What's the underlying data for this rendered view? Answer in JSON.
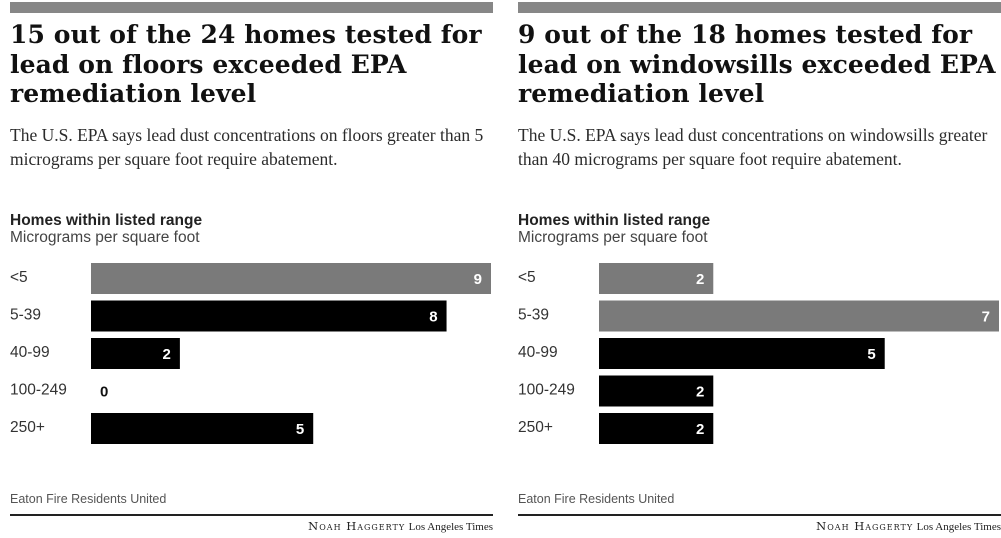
{
  "chart_data": [
    {
      "type": "bar",
      "title": "15 out of the 24 homes tested for lead on floors exceeded EPA remediation level",
      "subtitle": "The U.S. EPA says lead dust concentrations on floors greater than 5 micrograms per square foot require abatement.",
      "ylabel": "Homes within listed range",
      "xlabel": "Micrograms per square foot",
      "categories": [
        "<5",
        "5-39",
        "40-99",
        "100-249",
        "250+"
      ],
      "values": [
        9,
        8,
        2,
        0,
        5
      ],
      "highlight": [
        true,
        false,
        false,
        false,
        false
      ],
      "xlim": [
        0,
        9
      ],
      "grid": false,
      "colors": {
        "highlight": "#7a7a7a",
        "bar": "#000000",
        "label_outside": "#111111",
        "label_inside": "#ffffff"
      },
      "source": "Eaton Fire Residents United",
      "credit_name": "Noah Haggerty",
      "credit_org": "Los Angeles Times"
    },
    {
      "type": "bar",
      "title": "9 out of the 18 homes tested for lead on windowsills exceeded EPA remediation level",
      "subtitle": "The U.S. EPA says lead dust concentrations on windowsills greater than 40 micrograms per square foot require abatement.",
      "ylabel": "Homes within listed range",
      "xlabel": "Micrograms per square foot",
      "categories": [
        "<5",
        "5-39",
        "40-99",
        "100-249",
        "250+"
      ],
      "values": [
        2,
        7,
        5,
        2,
        2
      ],
      "highlight": [
        true,
        true,
        false,
        false,
        false
      ],
      "xlim": [
        0,
        7
      ],
      "grid": false,
      "colors": {
        "highlight": "#7a7a7a",
        "bar": "#000000",
        "label_outside": "#111111",
        "label_inside": "#ffffff"
      },
      "source": "Eaton Fire Residents United",
      "credit_name": "Noah Haggerty",
      "credit_org": "Los Angeles Times"
    }
  ]
}
